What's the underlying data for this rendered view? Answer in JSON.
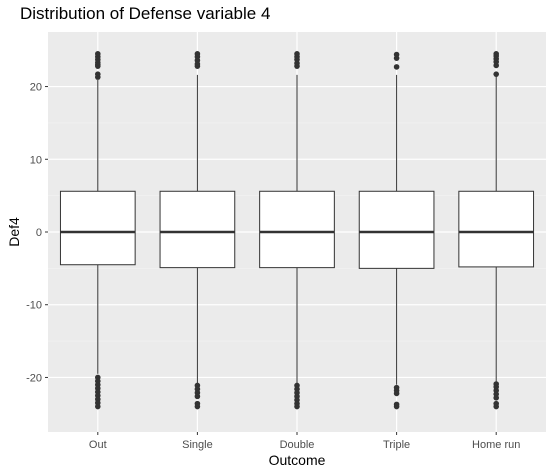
{
  "chart_data": {
    "type": "boxplot",
    "title": "Distribution of Defense variable 4",
    "xlabel": "Outcome",
    "ylabel": "Def4",
    "ylim": [
      -27.5,
      27.5
    ],
    "yticks": [
      -20,
      -10,
      0,
      10,
      20
    ],
    "grid": true,
    "legend": "none",
    "categories": [
      "Out",
      "Single",
      "Double",
      "Triple",
      "Home run"
    ],
    "boxes": [
      {
        "category": "Out",
        "q1": -4.5,
        "median": 0,
        "q3": 5.6,
        "whisker_low": -19.5,
        "whisker_high": 20.9,
        "outliers": [
          21.3,
          21.7,
          22.8,
          23.0,
          23.3,
          23.7,
          24.1,
          24.5,
          -20.0,
          -20.5,
          -21.0,
          -21.5,
          -22.0,
          -22.5,
          -23.0,
          -23.5,
          -24.0
        ]
      },
      {
        "category": "Single",
        "q1": -4.9,
        "median": 0,
        "q3": 5.6,
        "whisker_low": -20.8,
        "whisker_high": 21.6,
        "outliers": [
          22.8,
          23.1,
          23.6,
          24.1,
          24.5,
          -21.1,
          -21.6,
          -22.1,
          -22.6,
          -23.6,
          -24.0
        ]
      },
      {
        "category": "Double",
        "q1": -4.9,
        "median": 0,
        "q3": 5.6,
        "whisker_low": -20.8,
        "whisker_high": 21.6,
        "outliers": [
          22.8,
          23.2,
          23.7,
          24.1,
          24.5,
          -21.1,
          -21.6,
          -22.1,
          -22.6,
          -23.1,
          -23.6,
          -24.0
        ]
      },
      {
        "category": "Triple",
        "q1": -5.0,
        "median": 0,
        "q3": 5.6,
        "whisker_low": -21.0,
        "whisker_high": 21.6,
        "outliers": [
          22.7,
          23.9,
          24.4,
          -21.4,
          -21.8,
          -22.2,
          -23.7,
          -24.0
        ]
      },
      {
        "category": "Home run",
        "q1": -4.8,
        "median": 0,
        "q3": 5.6,
        "whisker_low": -20.6,
        "whisker_high": 21.5,
        "outliers": [
          21.7,
          22.9,
          23.4,
          23.8,
          24.2,
          24.5,
          -20.9,
          -21.3,
          -21.8,
          -22.3,
          -22.8,
          -23.6,
          -24.0
        ]
      }
    ],
    "colors": {
      "panel_background": "#ebebeb",
      "grid_major": "#ffffff",
      "grid_minor": "#f4f4f4",
      "box_fill": "#ffffff",
      "box_stroke": "#333333",
      "tick_text": "#4d4d4d"
    }
  }
}
